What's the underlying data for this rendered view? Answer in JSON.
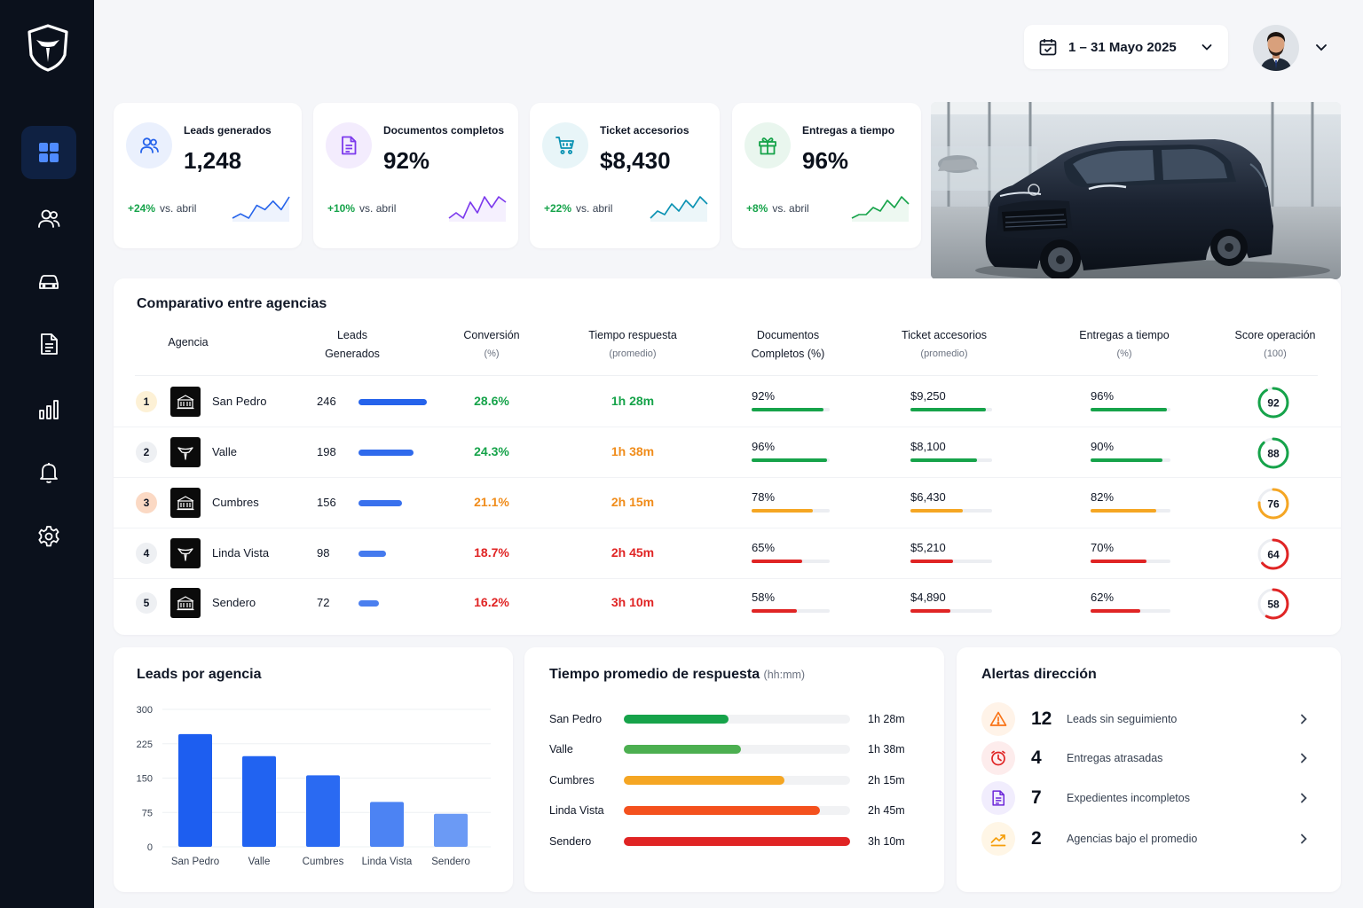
{
  "header": {
    "date_range": "1 – 31 Mayo 2025"
  },
  "sidebar": {
    "items": [
      {
        "icon": "dashboard-icon",
        "active": true
      },
      {
        "icon": "users-icon",
        "active": false
      },
      {
        "icon": "car-icon",
        "active": false
      },
      {
        "icon": "document-icon",
        "active": false
      },
      {
        "icon": "bar-chart-icon",
        "active": false
      },
      {
        "icon": "bell-icon",
        "active": false
      },
      {
        "icon": "gear-icon",
        "active": false
      }
    ]
  },
  "kpis": [
    {
      "label": "Leads generados",
      "value": "1,248",
      "delta": "+24%",
      "delta_text": "vs. abril",
      "icon": "users-icon",
      "color": "#2563eb",
      "spark": [
        3,
        4,
        3,
        6,
        5,
        7,
        5,
        8
      ]
    },
    {
      "label": "Documentos completos",
      "value": "92%",
      "delta": "+10%",
      "delta_text": "vs. abril",
      "icon": "document-icon",
      "color": "#7c3aed",
      "spark": [
        2,
        3,
        2,
        5,
        3,
        6,
        4,
        6,
        5
      ]
    },
    {
      "label": "Ticket accesorios",
      "value": "$8,430",
      "delta": "+22%",
      "delta_text": "vs. abril",
      "icon": "cart-icon",
      "color": "#0891b2",
      "spark": [
        2,
        4,
        3,
        6,
        4,
        7,
        5,
        8,
        6
      ]
    },
    {
      "label": "Entregas a tiempo",
      "value": "96%",
      "delta": "+8%",
      "delta_text": "vs. abril",
      "icon": "gift-icon",
      "color": "#16a34a",
      "spark": [
        2,
        3,
        3,
        5,
        4,
        7,
        5,
        8,
        6
      ]
    }
  ],
  "comparison": {
    "title": "Comparativo entre agencias",
    "headers": {
      "agency": "Agencia",
      "leads": [
        "Leads",
        "Generados"
      ],
      "conversion": [
        "Conversión",
        "(%)"
      ],
      "response": [
        "Tiempo respuesta",
        "(promedio)"
      ],
      "documents": [
        "Documentos",
        "Completos (%)"
      ],
      "ticket": [
        "Ticket accesorios",
        "(promedio)"
      ],
      "deliveries": [
        "Entregas a tiempo",
        "(%)"
      ],
      "score": [
        "Score operación",
        "(100)"
      ]
    },
    "rows": [
      {
        "rank": "1",
        "name": "San Pedro",
        "logo": "building-icon",
        "leads": "246",
        "leads_value": 246,
        "conversion": "28.6%",
        "response": "1h 28m",
        "documents": "92%",
        "documents_value": 92,
        "ticket": "$9,250",
        "ticket_value": 9250,
        "deliveries": "96%",
        "deliveries_value": 96,
        "score": "92",
        "score_value": 92,
        "level": "good"
      },
      {
        "rank": "2",
        "name": "Valle",
        "logo": "brand-icon",
        "leads": "198",
        "leads_value": 198,
        "conversion": "24.3%",
        "response": "1h 38m",
        "documents": "96%",
        "documents_value": 96,
        "ticket": "$8,100",
        "ticket_value": 8100,
        "deliveries": "90%",
        "deliveries_value": 90,
        "score": "88",
        "score_value": 88,
        "level": "good"
      },
      {
        "rank": "3",
        "name": "Cumbres",
        "logo": "building-icon",
        "leads": "156",
        "leads_value": 156,
        "conversion": "21.1%",
        "response": "2h 15m",
        "documents": "78%",
        "documents_value": 78,
        "ticket": "$6,430",
        "ticket_value": 6430,
        "deliveries": "82%",
        "deliveries_value": 82,
        "score": "76",
        "score_value": 76,
        "level": "mid"
      },
      {
        "rank": "4",
        "name": "Linda Vista",
        "logo": "brand-icon",
        "leads": "98",
        "leads_value": 98,
        "conversion": "18.7%",
        "response": "2h 45m",
        "documents": "65%",
        "documents_value": 65,
        "ticket": "$5,210",
        "ticket_value": 5210,
        "deliveries": "70%",
        "deliveries_value": 70,
        "score": "64",
        "score_value": 64,
        "level": "bad"
      },
      {
        "rank": "5",
        "name": "Sendero",
        "logo": "building-icon",
        "leads": "72",
        "leads_value": 72,
        "conversion": "16.2%",
        "response": "3h 10m",
        "documents": "58%",
        "documents_value": 58,
        "ticket": "$4,890",
        "ticket_value": 4890,
        "deliveries": "62%",
        "deliveries_value": 62,
        "score": "58",
        "score_value": 58,
        "level": "bad"
      }
    ]
  },
  "leads_chart": {
    "title": "Leads por agencia",
    "chart_data": {
      "type": "bar",
      "categories": [
        "San Pedro",
        "Valle",
        "Cumbres",
        "Linda Vista",
        "Sendero"
      ],
      "values": [
        246,
        198,
        156,
        98,
        72
      ],
      "yticks": [
        0,
        75,
        150,
        225,
        300
      ],
      "ylim": [
        0,
        300
      ],
      "title": "Leads por agencia",
      "xlabel": "",
      "ylabel": ""
    }
  },
  "response_chart": {
    "title": "Tiempo promedio de respuesta",
    "unit": "(hh:mm)",
    "chart_data": {
      "type": "bar",
      "orientation": "horizontal",
      "categories": [
        "San Pedro",
        "Valle",
        "Cumbres",
        "Linda Vista",
        "Sendero"
      ],
      "values_minutes": [
        88,
        98,
        135,
        165,
        190
      ],
      "labels": [
        "1h 28m",
        "1h 38m",
        "2h 15m",
        "2h 45m",
        "3h 10m"
      ],
      "colors": [
        "#16a34a",
        "#4caf50",
        "#f5a623",
        "#f4511e",
        "#e02424"
      ]
    }
  },
  "alerts": {
    "title": "Alertas dirección",
    "items": [
      {
        "count": "12",
        "label": "Leads sin seguimiento",
        "icon": "warning-icon",
        "color": "#f97316",
        "bg": "#fff3e8"
      },
      {
        "count": "4",
        "label": "Entregas atrasadas",
        "icon": "clock-icon",
        "color": "#e02424",
        "bg": "#fdecec"
      },
      {
        "count": "7",
        "label": "Expedientes incompletos",
        "icon": "document-icon",
        "color": "#6d28d9",
        "bg": "#f1edfd"
      },
      {
        "count": "2",
        "label": "Agencias bajo el promedio",
        "icon": "trend-icon",
        "color": "#f59e0b",
        "bg": "#fff6e6"
      }
    ]
  },
  "colors": {
    "good": "#16a34a",
    "mid": "#f5a623",
    "bad": "#e02424",
    "accent": "#2563eb",
    "sidebar": "#0b111c"
  }
}
